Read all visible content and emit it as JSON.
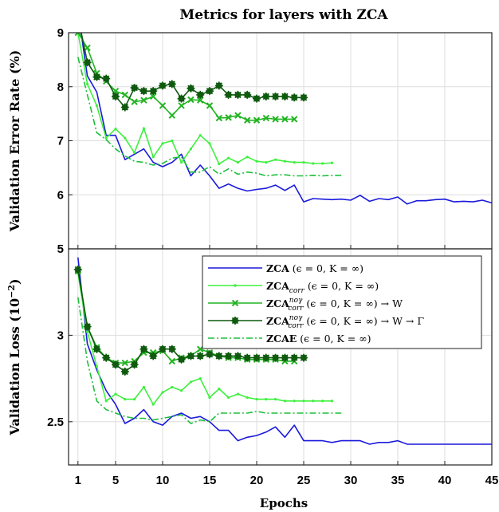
{
  "title": "Metrics for layers with ZCA",
  "xlabel": "Epochs",
  "colors": {
    "zca": "#1a1adc",
    "corr": "#3ef03e",
    "nog_w": "#22b422",
    "nog_wg": "#0f5a0f",
    "zcae": "#1fbf3c"
  },
  "legend": [
    {
      "name": "ZCA",
      "sub": "",
      "sup": "",
      "rest": " (ϵ = 0, K = ∞)"
    },
    {
      "name": "ZCA",
      "sub": "corr",
      "sup": "",
      "rest": " (ϵ = 0, K = ∞)"
    },
    {
      "name": "ZCA",
      "sub": "corr",
      "sup": "noγ",
      "rest": " (ϵ = 0, K = ∞) → W"
    },
    {
      "name": "ZCA",
      "sub": "corr",
      "sup": "noγ",
      "rest": " (ϵ = 0, K = ∞) → W → Γ"
    },
    {
      "name": "ZCAE",
      "sub": "",
      "sup": "",
      "rest": " (ϵ = 0, K = ∞)"
    }
  ],
  "chart_data": [
    {
      "type": "line",
      "title": "Metrics for layers with ZCA",
      "ylabel": "Validation Error Rate (%)",
      "xlabel": "",
      "xlim": [
        0,
        45
      ],
      "ylim": [
        5,
        9
      ],
      "yticks": [
        5,
        6,
        7,
        8,
        9
      ],
      "grid": true,
      "series": [
        {
          "name": "ZCA (ϵ = 0, K = ∞)",
          "color_key": "zca",
          "style": "solid",
          "marker": "none",
          "x": [
            1,
            2,
            3,
            4,
            5,
            6,
            7,
            8,
            9,
            10,
            11,
            12,
            13,
            14,
            15,
            16,
            17,
            18,
            19,
            20,
            21,
            22,
            23,
            24,
            25,
            26,
            27,
            28,
            29,
            30,
            31,
            32,
            33,
            34,
            35,
            36,
            37,
            38,
            39,
            40,
            41,
            42,
            43,
            44,
            45
          ],
          "y": [
            9.4,
            8.2,
            7.9,
            7.1,
            7.1,
            6.65,
            6.75,
            6.85,
            6.6,
            6.52,
            6.6,
            6.75,
            6.35,
            6.55,
            6.35,
            6.12,
            6.2,
            6.12,
            6.07,
            6.1,
            6.12,
            6.18,
            6.08,
            6.18,
            5.87,
            5.93,
            5.92,
            5.91,
            5.92,
            5.9,
            5.99,
            5.88,
            5.93,
            5.91,
            5.96,
            5.83,
            5.89,
            5.89,
            5.91,
            5.92,
            5.87,
            5.88,
            5.87,
            5.9,
            5.85
          ]
        },
        {
          "name": "ZCAcorr (ϵ = 0, K = ∞)",
          "color_key": "corr",
          "style": "solid",
          "marker": "dot",
          "x": [
            1,
            2,
            3,
            4,
            5,
            6,
            7,
            8,
            9,
            10,
            11,
            12,
            13,
            14,
            15,
            16,
            17,
            18,
            19,
            20,
            21,
            22,
            23,
            24,
            25,
            26,
            27,
            28
          ],
          "y": [
            9.0,
            8.05,
            7.65,
            7.05,
            7.22,
            7.05,
            6.78,
            7.23,
            6.7,
            6.95,
            7.0,
            6.6,
            6.85,
            7.1,
            6.95,
            6.57,
            6.68,
            6.6,
            6.7,
            6.62,
            6.6,
            6.65,
            6.62,
            6.6,
            6.6,
            6.58,
            6.58,
            6.59
          ]
        },
        {
          "name": "ZCAcorr noγ (ϵ = 0, K = ∞) → W",
          "color_key": "nog_w",
          "style": "solid",
          "marker": "x",
          "x": [
            1,
            2,
            3,
            4,
            5,
            6,
            7,
            8,
            9,
            10,
            11,
            12,
            13,
            14,
            15,
            16,
            17,
            18,
            19,
            20,
            21,
            22,
            23,
            24
          ],
          "y": [
            9.0,
            8.72,
            8.25,
            8.1,
            7.92,
            7.85,
            7.72,
            7.75,
            7.82,
            7.65,
            7.47,
            7.65,
            7.76,
            7.75,
            7.65,
            7.42,
            7.43,
            7.47,
            7.38,
            7.38,
            7.42,
            7.4,
            7.4,
            7.4
          ]
        },
        {
          "name": "ZCAcorr noγ (ϵ = 0, K = ∞) → W → Γ",
          "color_key": "nog_wg",
          "style": "solid",
          "marker": "star",
          "x": [
            1,
            2,
            3,
            4,
            5,
            6,
            7,
            8,
            9,
            10,
            11,
            12,
            13,
            14,
            15,
            16,
            17,
            18,
            19,
            20,
            21,
            22,
            23,
            24,
            25
          ],
          "y": [
            9.3,
            8.45,
            8.18,
            8.15,
            7.82,
            7.62,
            7.98,
            7.92,
            7.92,
            8.02,
            8.05,
            7.78,
            7.97,
            7.85,
            7.92,
            8.02,
            7.85,
            7.85,
            7.85,
            7.78,
            7.82,
            7.82,
            7.82,
            7.8,
            7.8
          ]
        },
        {
          "name": "ZCAE (ϵ = 0, K = ∞)",
          "color_key": "zcae",
          "style": "dashdot",
          "marker": "none",
          "x": [
            1,
            2,
            3,
            4,
            5,
            6,
            7,
            8,
            9,
            10,
            11,
            12,
            13,
            14,
            15,
            16,
            17,
            18,
            19,
            20,
            21,
            22,
            23,
            24,
            25,
            26,
            27,
            28,
            29
          ],
          "y": [
            8.55,
            7.85,
            7.15,
            7.02,
            6.85,
            6.72,
            6.62,
            6.6,
            6.55,
            6.58,
            6.68,
            6.7,
            6.42,
            6.42,
            6.52,
            6.38,
            6.48,
            6.38,
            6.42,
            6.4,
            6.35,
            6.37,
            6.37,
            6.35,
            6.35,
            6.36,
            6.35,
            6.36,
            6.36
          ]
        }
      ]
    },
    {
      "type": "line",
      "title": "",
      "ylabel": "Validation Loss (10^-2)",
      "xlabel": "Epochs",
      "xlim": [
        0,
        45
      ],
      "ylim": [
        2.25,
        3.5
      ],
      "yticks": [
        2.5,
        3
      ],
      "xticks": [
        1,
        5,
        10,
        15,
        20,
        25,
        30,
        35,
        40,
        45
      ],
      "grid": true,
      "legend_position": "top-right",
      "series": [
        {
          "name": "ZCA (ϵ = 0, K = ∞)",
          "color_key": "zca",
          "style": "solid",
          "marker": "none",
          "x": [
            1,
            2,
            3,
            4,
            5,
            6,
            7,
            8,
            9,
            10,
            11,
            12,
            13,
            14,
            15,
            16,
            17,
            18,
            19,
            20,
            21,
            22,
            23,
            24,
            25,
            26,
            27,
            28,
            29,
            30,
            31,
            32,
            33,
            34,
            35,
            36,
            37,
            38,
            39,
            40,
            41,
            42,
            43,
            44,
            45
          ],
          "y": [
            3.45,
            2.95,
            2.8,
            2.68,
            2.6,
            2.49,
            2.52,
            2.57,
            2.5,
            2.48,
            2.53,
            2.55,
            2.52,
            2.53,
            2.5,
            2.45,
            2.45,
            2.39,
            2.41,
            2.42,
            2.44,
            2.47,
            2.41,
            2.48,
            2.39,
            2.39,
            2.39,
            2.38,
            2.39,
            2.39,
            2.39,
            2.37,
            2.38,
            2.38,
            2.39,
            2.37,
            2.37,
            2.37,
            2.37,
            2.37,
            2.37,
            2.37,
            2.37,
            2.37,
            2.37
          ]
        },
        {
          "name": "ZCAcorr (ϵ = 0, K = ∞)",
          "color_key": "corr",
          "style": "solid",
          "marker": "dot",
          "x": [
            1,
            2,
            3,
            4,
            5,
            6,
            7,
            8,
            9,
            10,
            11,
            12,
            13,
            14,
            15,
            16,
            17,
            18,
            19,
            20,
            21,
            22,
            23,
            24,
            25,
            26,
            27,
            28
          ],
          "y": [
            3.36,
            3.02,
            2.82,
            2.62,
            2.66,
            2.63,
            2.63,
            2.7,
            2.6,
            2.67,
            2.7,
            2.68,
            2.73,
            2.75,
            2.64,
            2.69,
            2.64,
            2.66,
            2.64,
            2.63,
            2.63,
            2.63,
            2.62,
            2.62,
            2.62,
            2.62,
            2.62,
            2.62
          ]
        },
        {
          "name": "ZCAcorr noγ (ϵ = 0, K = ∞) → W",
          "color_key": "nog_w",
          "style": "solid",
          "marker": "x",
          "x": [
            1,
            2,
            3,
            4,
            5,
            6,
            7,
            8,
            9,
            10,
            11,
            12,
            13,
            14,
            15,
            16,
            17,
            18,
            19,
            20,
            21,
            22,
            23,
            24
          ],
          "y": [
            3.37,
            3.05,
            2.93,
            2.87,
            2.84,
            2.84,
            2.85,
            2.9,
            2.9,
            2.91,
            2.85,
            2.87,
            2.88,
            2.92,
            2.9,
            2.88,
            2.87,
            2.87,
            2.86,
            2.86,
            2.86,
            2.86,
            2.85,
            2.85
          ]
        },
        {
          "name": "ZCAcorr noγ (ϵ = 0, K = ∞) → W → Γ",
          "color_key": "nog_wg",
          "style": "solid",
          "marker": "star",
          "x": [
            1,
            2,
            3,
            4,
            5,
            6,
            7,
            8,
            9,
            10,
            11,
            12,
            13,
            14,
            15,
            16,
            17,
            18,
            19,
            20,
            21,
            22,
            23,
            24,
            25
          ],
          "y": [
            3.38,
            3.05,
            2.92,
            2.87,
            2.83,
            2.79,
            2.83,
            2.92,
            2.88,
            2.92,
            2.92,
            2.86,
            2.88,
            2.88,
            2.89,
            2.88,
            2.88,
            2.88,
            2.87,
            2.87,
            2.87,
            2.87,
            2.87,
            2.87,
            2.87
          ]
        },
        {
          "name": "ZCAE (ϵ = 0, K = ∞)",
          "color_key": "zcae",
          "style": "dashdot",
          "marker": "none",
          "x": [
            1,
            2,
            3,
            4,
            5,
            6,
            7,
            8,
            9,
            10,
            11,
            12,
            13,
            14,
            15,
            16,
            17,
            18,
            19,
            20,
            21,
            22,
            23,
            24,
            25,
            26,
            27,
            28,
            29
          ],
          "y": [
            3.22,
            2.85,
            2.62,
            2.57,
            2.55,
            2.53,
            2.52,
            2.52,
            2.51,
            2.52,
            2.53,
            2.54,
            2.49,
            2.51,
            2.5,
            2.55,
            2.55,
            2.55,
            2.55,
            2.56,
            2.55,
            2.55,
            2.55,
            2.55,
            2.55,
            2.55,
            2.55,
            2.55,
            2.55
          ]
        }
      ]
    }
  ]
}
